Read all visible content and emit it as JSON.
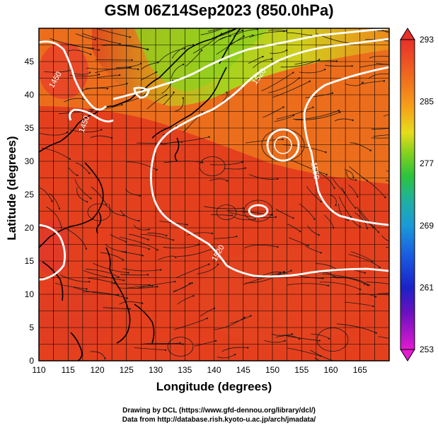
{
  "title": "GSM 06Z14Sep2023 (850.0hPa)",
  "xlabel": "Longitude (degrees)",
  "ylabel": "Latitude  (degrees)",
  "credits": [
    "Drawing by DCL (https://www.gfd-dennou.org/library/dcl/)",
    "Data from http://database.rish.kyoto-u.ac.jp/arch/jmadata/"
  ],
  "chart_data": {
    "type": "heatmap",
    "x_range": [
      110,
      170
    ],
    "y_range": [
      0,
      50
    ],
    "x_ticks": [
      110,
      115,
      120,
      125,
      130,
      135,
      140,
      145,
      150,
      155,
      160,
      165
    ],
    "y_ticks": [
      0,
      5,
      10,
      15,
      20,
      25,
      30,
      35,
      40,
      45
    ],
    "colorbar": {
      "labels": [
        293,
        285,
        277,
        269,
        261,
        253
      ],
      "range": [
        253,
        293
      ]
    },
    "contour_labels": [
      "1450",
      "1450",
      "1520",
      "1550",
      "1520"
    ],
    "grid": true
  }
}
